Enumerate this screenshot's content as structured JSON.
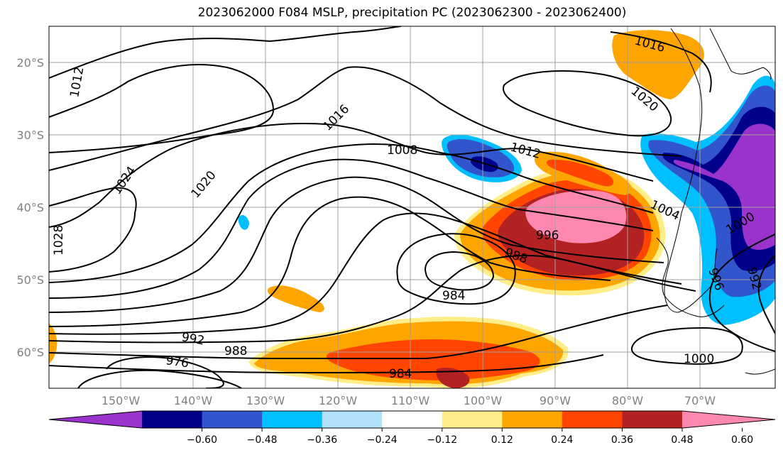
{
  "title": "2023062000 F084 MSLP, precipitation PC (2023062300 - 2023062400)",
  "lat_labels": [
    "20°S",
    "30°S",
    "40°S",
    "50°S",
    "60°S"
  ],
  "lon_labels": [
    "150°W",
    "140°W",
    "130°W",
    "120°W",
    "110°W",
    "100°W",
    "90°W",
    "80°W",
    "70°W"
  ],
  "isobar_labels": [
    "1012",
    "1016",
    "1016",
    "1020",
    "1020",
    "1024",
    "1028",
    "1008",
    "1012",
    "1004",
    "996",
    "988",
    "984",
    "992",
    "988",
    "976",
    "984",
    "1000",
    "1000",
    "996",
    "992"
  ],
  "colorbar": {
    "ticks": [
      "−0.60",
      "−0.48",
      "−0.36",
      "−0.24",
      "−0.12",
      "0.12",
      "0.24",
      "0.36",
      "0.48",
      "0.60"
    ],
    "colors": [
      "#9933cc",
      "#00008b",
      "#3355cc",
      "#00bfff",
      "#b0e0fa",
      "#ffffff",
      "#ffee88",
      "#ffa500",
      "#ff4500",
      "#b22222",
      "#ff88b0"
    ]
  }
}
